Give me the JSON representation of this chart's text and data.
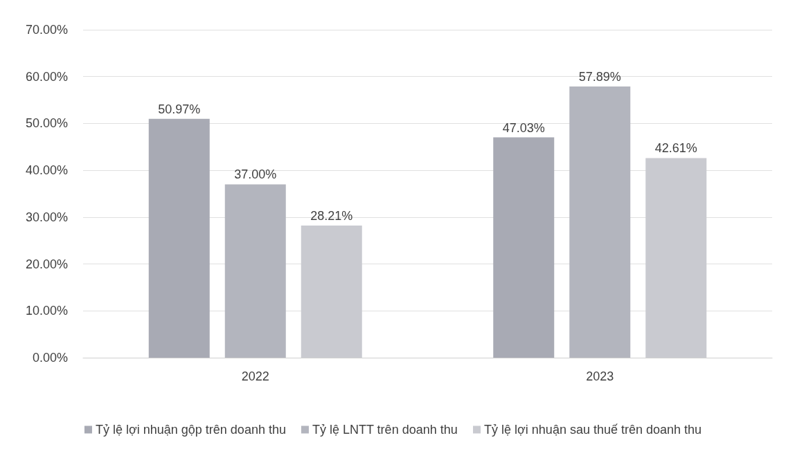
{
  "chart_data": {
    "type": "bar",
    "categories": [
      "2022",
      "2023"
    ],
    "series": [
      {
        "name": "Tỷ lệ lợi nhuận gộp trên doanh thu",
        "color": "#a8aab4",
        "values": [
          50.97,
          47.03
        ],
        "value_labels": [
          "50.97%",
          "47.03%"
        ]
      },
      {
        "name": "Tỷ lệ LNTT trên doanh thu",
        "color": "#b3b5be",
        "values": [
          37.0,
          57.89
        ],
        "value_labels": [
          "37.00%",
          "57.89%"
        ]
      },
      {
        "name": "Tỷ lệ lợi nhuận sau thuế trên doanh thu",
        "color": "#c9cad0",
        "values": [
          28.21,
          42.61
        ],
        "value_labels": [
          "28.21%",
          "42.61%"
        ]
      }
    ],
    "ylim": [
      0,
      70
    ],
    "yticks": [
      {
        "value": 0,
        "label": "0.00%"
      },
      {
        "value": 10,
        "label": "10.00%"
      },
      {
        "value": 20,
        "label": "20.00%"
      },
      {
        "value": 30,
        "label": "30.00%"
      },
      {
        "value": 40,
        "label": "40.00%"
      },
      {
        "value": 50,
        "label": "50.00%"
      },
      {
        "value": 60,
        "label": "60.00%"
      },
      {
        "value": 70,
        "label": "70.00%"
      }
    ],
    "grid": "y",
    "legend": "bottom"
  }
}
